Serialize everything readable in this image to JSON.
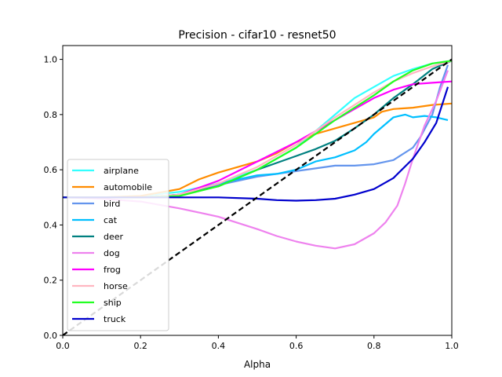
{
  "chart_data": {
    "type": "line",
    "title": "Precision - cifar10 - resnet50",
    "xlabel": "Alpha",
    "ylabel": "",
    "xlim": [
      0.0,
      1.0
    ],
    "ylim": [
      0.0,
      1.05
    ],
    "xticks": [
      "0.0",
      "0.2",
      "0.4",
      "0.6",
      "0.8",
      "1.0"
    ],
    "yticks": [
      "0.0",
      "0.2",
      "0.4",
      "0.6",
      "0.8",
      "1.0"
    ],
    "grid": false,
    "legend_position": "lower-left",
    "reference_line": {
      "style": "dashed",
      "color": "#000000",
      "points": [
        [
          0.0,
          0.0
        ],
        [
          1.0,
          1.0
        ]
      ]
    },
    "series": [
      {
        "name": "airplane",
        "color": "#33ffff",
        "points": [
          [
            0.0,
            0.5
          ],
          [
            0.1,
            0.5
          ],
          [
            0.2,
            0.505
          ],
          [
            0.3,
            0.52
          ],
          [
            0.4,
            0.55
          ],
          [
            0.5,
            0.6
          ],
          [
            0.6,
            0.68
          ],
          [
            0.7,
            0.8
          ],
          [
            0.75,
            0.86
          ],
          [
            0.8,
            0.9
          ],
          [
            0.85,
            0.94
          ],
          [
            0.9,
            0.965
          ],
          [
            0.95,
            0.985
          ],
          [
            1.0,
            0.995
          ]
        ]
      },
      {
        "name": "automobile",
        "color": "#ff8c00",
        "points": [
          [
            0.0,
            0.5
          ],
          [
            0.1,
            0.5
          ],
          [
            0.2,
            0.505
          ],
          [
            0.3,
            0.53
          ],
          [
            0.35,
            0.565
          ],
          [
            0.4,
            0.59
          ],
          [
            0.5,
            0.63
          ],
          [
            0.55,
            0.66
          ],
          [
            0.6,
            0.7
          ],
          [
            0.65,
            0.73
          ],
          [
            0.7,
            0.75
          ],
          [
            0.8,
            0.79
          ],
          [
            0.82,
            0.81
          ],
          [
            0.85,
            0.82
          ],
          [
            0.9,
            0.825
          ],
          [
            0.95,
            0.835
          ],
          [
            1.0,
            0.84
          ]
        ]
      },
      {
        "name": "bird",
        "color": "#6495ed",
        "points": [
          [
            0.0,
            0.5
          ],
          [
            0.1,
            0.5
          ],
          [
            0.2,
            0.5
          ],
          [
            0.3,
            0.51
          ],
          [
            0.4,
            0.545
          ],
          [
            0.5,
            0.575
          ],
          [
            0.55,
            0.585
          ],
          [
            0.6,
            0.595
          ],
          [
            0.65,
            0.605
          ],
          [
            0.7,
            0.615
          ],
          [
            0.75,
            0.615
          ],
          [
            0.8,
            0.62
          ],
          [
            0.85,
            0.635
          ],
          [
            0.9,
            0.68
          ],
          [
            0.92,
            0.72
          ],
          [
            0.95,
            0.8
          ],
          [
            0.97,
            0.9
          ],
          [
            0.99,
            0.98
          ]
        ]
      },
      {
        "name": "cat",
        "color": "#00bfff",
        "points": [
          [
            0.0,
            0.5
          ],
          [
            0.1,
            0.5
          ],
          [
            0.2,
            0.5
          ],
          [
            0.3,
            0.51
          ],
          [
            0.4,
            0.55
          ],
          [
            0.5,
            0.58
          ],
          [
            0.55,
            0.585
          ],
          [
            0.6,
            0.6
          ],
          [
            0.65,
            0.63
          ],
          [
            0.7,
            0.645
          ],
          [
            0.75,
            0.67
          ],
          [
            0.78,
            0.7
          ],
          [
            0.8,
            0.73
          ],
          [
            0.85,
            0.79
          ],
          [
            0.88,
            0.8
          ],
          [
            0.9,
            0.79
          ],
          [
            0.93,
            0.795
          ],
          [
            0.96,
            0.79
          ],
          [
            0.99,
            0.78
          ]
        ]
      },
      {
        "name": "deer",
        "color": "#008080",
        "points": [
          [
            0.0,
            0.5
          ],
          [
            0.1,
            0.5
          ],
          [
            0.2,
            0.5
          ],
          [
            0.3,
            0.51
          ],
          [
            0.4,
            0.54
          ],
          [
            0.5,
            0.6
          ],
          [
            0.6,
            0.65
          ],
          [
            0.65,
            0.675
          ],
          [
            0.7,
            0.705
          ],
          [
            0.75,
            0.75
          ],
          [
            0.8,
            0.8
          ],
          [
            0.85,
            0.86
          ],
          [
            0.9,
            0.91
          ],
          [
            0.95,
            0.965
          ],
          [
            1.0,
            0.995
          ]
        ]
      },
      {
        "name": "dog",
        "color": "#ee82ee",
        "points": [
          [
            0.0,
            0.5
          ],
          [
            0.1,
            0.495
          ],
          [
            0.2,
            0.485
          ],
          [
            0.3,
            0.46
          ],
          [
            0.4,
            0.43
          ],
          [
            0.5,
            0.385
          ],
          [
            0.55,
            0.36
          ],
          [
            0.6,
            0.34
          ],
          [
            0.65,
            0.325
          ],
          [
            0.7,
            0.315
          ],
          [
            0.75,
            0.33
          ],
          [
            0.8,
            0.37
          ],
          [
            0.83,
            0.41
          ],
          [
            0.86,
            0.47
          ],
          [
            0.88,
            0.55
          ],
          [
            0.9,
            0.64
          ],
          [
            0.93,
            0.76
          ],
          [
            0.96,
            0.85
          ],
          [
            0.99,
            0.96
          ]
        ]
      },
      {
        "name": "frog",
        "color": "#ff00ff",
        "points": [
          [
            0.0,
            0.5
          ],
          [
            0.1,
            0.5
          ],
          [
            0.2,
            0.5
          ],
          [
            0.3,
            0.51
          ],
          [
            0.4,
            0.56
          ],
          [
            0.5,
            0.63
          ],
          [
            0.6,
            0.7
          ],
          [
            0.65,
            0.74
          ],
          [
            0.7,
            0.78
          ],
          [
            0.75,
            0.82
          ],
          [
            0.8,
            0.86
          ],
          [
            0.85,
            0.89
          ],
          [
            0.9,
            0.91
          ],
          [
            0.95,
            0.915
          ],
          [
            1.0,
            0.92
          ]
        ]
      },
      {
        "name": "horse",
        "color": "#ffb6c1",
        "points": [
          [
            0.0,
            0.5
          ],
          [
            0.1,
            0.5
          ],
          [
            0.2,
            0.5
          ],
          [
            0.3,
            0.51
          ],
          [
            0.4,
            0.55
          ],
          [
            0.5,
            0.61
          ],
          [
            0.6,
            0.69
          ],
          [
            0.7,
            0.79
          ],
          [
            0.8,
            0.88
          ],
          [
            0.85,
            0.92
          ],
          [
            0.9,
            0.95
          ],
          [
            0.95,
            0.975
          ],
          [
            1.0,
            0.995
          ]
        ]
      },
      {
        "name": "ship",
        "color": "#22ff22",
        "points": [
          [
            0.0,
            0.5
          ],
          [
            0.1,
            0.5
          ],
          [
            0.2,
            0.5
          ],
          [
            0.3,
            0.505
          ],
          [
            0.4,
            0.54
          ],
          [
            0.5,
            0.6
          ],
          [
            0.6,
            0.68
          ],
          [
            0.7,
            0.78
          ],
          [
            0.8,
            0.87
          ],
          [
            0.85,
            0.92
          ],
          [
            0.9,
            0.96
          ],
          [
            0.95,
            0.985
          ],
          [
            1.0,
            0.995
          ]
        ]
      },
      {
        "name": "truck",
        "color": "#0000cd",
        "points": [
          [
            0.0,
            0.5
          ],
          [
            0.1,
            0.5
          ],
          [
            0.2,
            0.5
          ],
          [
            0.3,
            0.5
          ],
          [
            0.4,
            0.5
          ],
          [
            0.5,
            0.495
          ],
          [
            0.55,
            0.49
          ],
          [
            0.6,
            0.488
          ],
          [
            0.65,
            0.49
          ],
          [
            0.7,
            0.495
          ],
          [
            0.75,
            0.51
          ],
          [
            0.8,
            0.53
          ],
          [
            0.85,
            0.57
          ],
          [
            0.9,
            0.64
          ],
          [
            0.93,
            0.7
          ],
          [
            0.96,
            0.77
          ],
          [
            0.99,
            0.9
          ]
        ]
      }
    ]
  }
}
